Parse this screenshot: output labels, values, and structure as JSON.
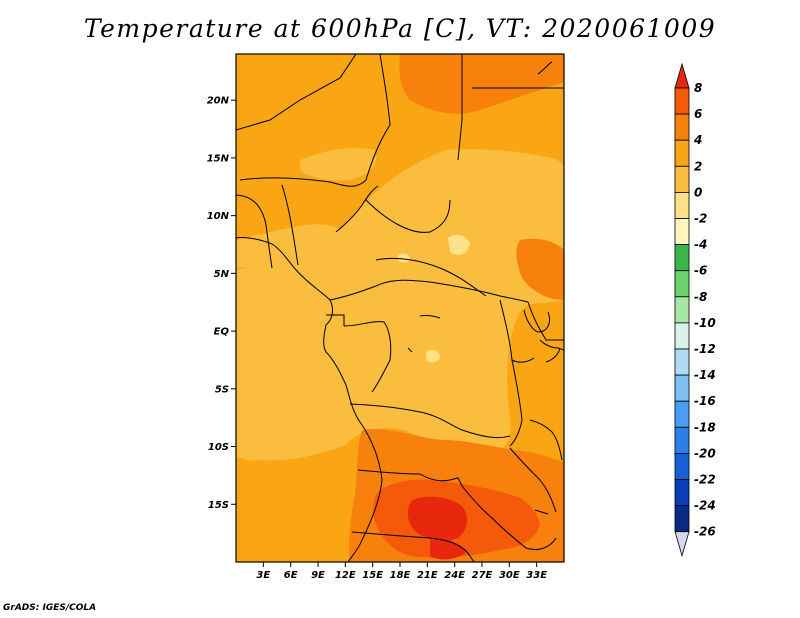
{
  "title": "Temperature at 600hPa [C], VT: 2020061009",
  "credit": "GrADS: IGES/COLA",
  "colors": {
    "frame": "#000000",
    "borders": "#000000",
    "background": "#ffffff"
  },
  "map": {
    "projection": "latlon",
    "lon_range": [
      0,
      36
    ],
    "lat_range": [
      -20,
      24
    ],
    "y_ticks": [
      {
        "lat": 20,
        "label": "20N"
      },
      {
        "lat": 15,
        "label": "15N"
      },
      {
        "lat": 10,
        "label": "10N"
      },
      {
        "lat": 5,
        "label": "5N"
      },
      {
        "lat": 0,
        "label": "EQ"
      },
      {
        "lat": -5,
        "label": "5S"
      },
      {
        "lat": -10,
        "label": "10S"
      },
      {
        "lat": -15,
        "label": "15S"
      }
    ],
    "x_ticks": [
      {
        "lon": 3,
        "label": "3E"
      },
      {
        "lon": 6,
        "label": "6E"
      },
      {
        "lon": 9,
        "label": "9E"
      },
      {
        "lon": 12,
        "label": "12E"
      },
      {
        "lon": 15,
        "label": "15E"
      },
      {
        "lon": 18,
        "label": "18E"
      },
      {
        "lon": 21,
        "label": "21E"
      },
      {
        "lon": 24,
        "label": "24E"
      },
      {
        "lon": 27,
        "label": "27E"
      },
      {
        "lon": 30,
        "label": "30E"
      },
      {
        "lon": 33,
        "label": "33E"
      }
    ]
  },
  "colorbar": {
    "levels": [
      "8",
      "6",
      "4",
      "2",
      "0",
      "-2",
      "-4",
      "-6",
      "-8",
      "-10",
      "-12",
      "-14",
      "-16",
      "-18",
      "-20",
      "-22",
      "-24",
      "-26"
    ],
    "colors": [
      "#e8280c",
      "#f55a0a",
      "#f8800d",
      "#f9a514",
      "#fbbd3e",
      "#fce08a",
      "#fff5bd",
      "#39b54a",
      "#6bd36b",
      "#a5e8a5",
      "#d8f4e6",
      "#aedcf7",
      "#7fbff2",
      "#4a9df0",
      "#2b80e8",
      "#1660d8",
      "#0b3fb8",
      "#072a86",
      "#050a58",
      "#d6d6f2"
    ]
  }
}
